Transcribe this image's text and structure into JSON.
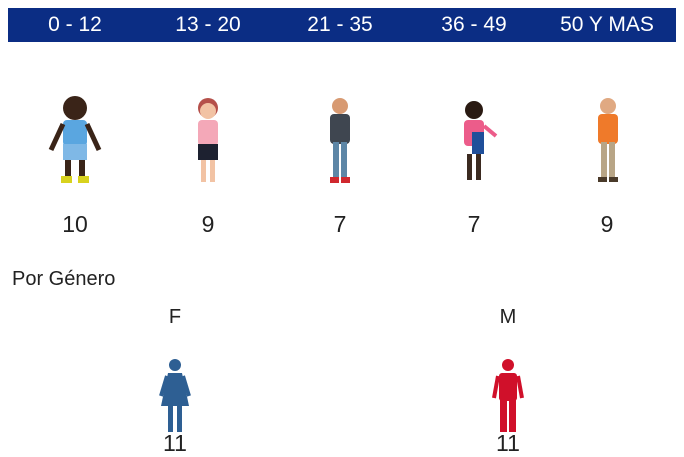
{
  "age_groups": [
    {
      "label": "0 - 12",
      "count": 10
    },
    {
      "label": "13 - 20",
      "count": 9
    },
    {
      "label": "21 - 35",
      "count": 7
    },
    {
      "label": "36 - 49",
      "count": 7
    },
    {
      "label": "50 Y MAS",
      "count": 9
    }
  ],
  "gender_section": {
    "title": "Por Género",
    "groups": [
      {
        "label": "F",
        "count": 11
      },
      {
        "label": "M",
        "count": 11
      }
    ]
  }
}
